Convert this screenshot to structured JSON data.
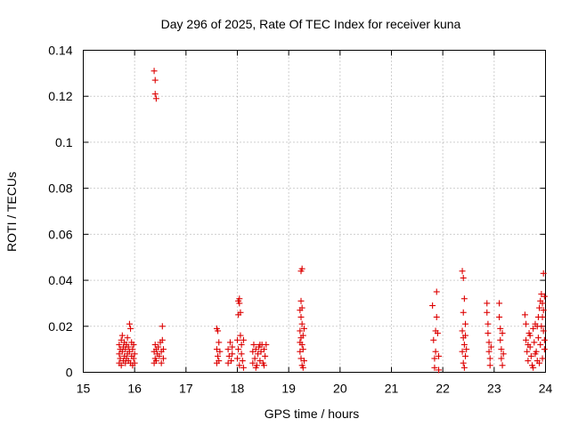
{
  "chart_data": {
    "type": "scatter",
    "title": "Day 296 of 2025, Rate Of TEC Index for receiver kuna",
    "xlabel": "GPS time / hours",
    "ylabel": "ROTI / TECUs",
    "xlim": [
      15,
      24
    ],
    "ylim": [
      0,
      0.14
    ],
    "xticks": [
      "15",
      "16",
      "17",
      "18",
      "19",
      "20",
      "21",
      "22",
      "23",
      "24"
    ],
    "yticks": [
      "0",
      "0.02",
      "0.04",
      "0.06",
      "0.08",
      "0.1",
      "0.12",
      "0.14"
    ],
    "grid": true,
    "marker_color": "#dd0000",
    "marker": "plus",
    "series": [
      {
        "points": [
          [
            15.7,
            0.004
          ],
          [
            15.7,
            0.008
          ],
          [
            15.7,
            0.012
          ],
          [
            15.72,
            0.006
          ],
          [
            15.72,
            0.01
          ],
          [
            15.74,
            0.014
          ],
          [
            15.74,
            0.003
          ],
          [
            15.76,
            0.009
          ],
          [
            15.76,
            0.016
          ],
          [
            15.78,
            0.005
          ],
          [
            15.78,
            0.011
          ],
          [
            15.8,
            0.007
          ],
          [
            15.8,
            0.013
          ],
          [
            15.82,
            0.004
          ],
          [
            15.82,
            0.01
          ],
          [
            15.84,
            0.006
          ],
          [
            15.84,
            0.012
          ],
          [
            15.86,
            0.008
          ],
          [
            15.86,
            0.015
          ],
          [
            15.88,
            0.005
          ],
          [
            15.88,
            0.011
          ],
          [
            15.9,
            0.021
          ],
          [
            15.9,
            0.009
          ],
          [
            15.92,
            0.019
          ],
          [
            15.92,
            0.004
          ],
          [
            15.94,
            0.013
          ],
          [
            15.94,
            0.007
          ],
          [
            15.96,
            0.01
          ],
          [
            15.96,
            0.003
          ],
          [
            15.98,
            0.006
          ],
          [
            15.98,
            0.012
          ],
          [
            16.0,
            0.008
          ],
          [
            16.0,
            0.004
          ],
          [
            16.38,
            0.131
          ],
          [
            16.4,
            0.127
          ],
          [
            16.4,
            0.121
          ],
          [
            16.42,
            0.119
          ],
          [
            16.38,
            0.004
          ],
          [
            16.38,
            0.009
          ],
          [
            16.4,
            0.012
          ],
          [
            16.4,
            0.006
          ],
          [
            16.42,
            0.01
          ],
          [
            16.42,
            0.005
          ],
          [
            16.44,
            0.008
          ],
          [
            16.46,
            0.011
          ],
          [
            16.48,
            0.007
          ],
          [
            16.5,
            0.013
          ],
          [
            16.52,
            0.004
          ],
          [
            16.52,
            0.009
          ],
          [
            16.54,
            0.02
          ],
          [
            16.54,
            0.014
          ],
          [
            16.56,
            0.006
          ],
          [
            16.56,
            0.01
          ],
          [
            17.6,
            0.019
          ],
          [
            17.6,
            0.01
          ],
          [
            17.6,
            0.004
          ],
          [
            17.62,
            0.018
          ],
          [
            17.62,
            0.007
          ],
          [
            17.64,
            0.013
          ],
          [
            17.64,
            0.005
          ],
          [
            17.66,
            0.009
          ],
          [
            17.82,
            0.004
          ],
          [
            17.82,
            0.01
          ],
          [
            17.84,
            0.007
          ],
          [
            17.86,
            0.013
          ],
          [
            17.88,
            0.005
          ],
          [
            17.9,
            0.011
          ],
          [
            17.9,
            0.008
          ],
          [
            18.02,
            0.031
          ],
          [
            18.04,
            0.032
          ],
          [
            18.06,
            0.026
          ],
          [
            18.02,
            0.025
          ],
          [
            18.04,
            0.03
          ],
          [
            18.0,
            0.014
          ],
          [
            18.0,
            0.006
          ],
          [
            18.02,
            0.01
          ],
          [
            18.04,
            0.003
          ],
          [
            18.06,
            0.016
          ],
          [
            18.08,
            0.008
          ],
          [
            18.08,
            0.012
          ],
          [
            18.1,
            0.005
          ],
          [
            18.12,
            0.014
          ],
          [
            18.12,
            0.002
          ],
          [
            18.3,
            0.004
          ],
          [
            18.3,
            0.009
          ],
          [
            18.32,
            0.012
          ],
          [
            18.34,
            0.006
          ],
          [
            18.36,
            0.01
          ],
          [
            18.38,
            0.003
          ],
          [
            18.4,
            0.008
          ],
          [
            18.42,
            0.011
          ],
          [
            18.44,
            0.005
          ],
          [
            18.46,
            0.009
          ],
          [
            18.48,
            0.012
          ],
          [
            18.5,
            0.004
          ],
          [
            18.52,
            0.01
          ],
          [
            18.54,
            0.007
          ],
          [
            18.56,
            0.012
          ],
          [
            18.36,
            0.002
          ],
          [
            18.44,
            0.012
          ],
          [
            18.52,
            0.003
          ],
          [
            19.24,
            0.044
          ],
          [
            19.26,
            0.045
          ],
          [
            19.24,
            0.031
          ],
          [
            19.22,
            0.027
          ],
          [
            19.26,
            0.028
          ],
          [
            19.24,
            0.024
          ],
          [
            19.26,
            0.021
          ],
          [
            19.22,
            0.018
          ],
          [
            19.24,
            0.015
          ],
          [
            19.26,
            0.012
          ],
          [
            19.22,
            0.009
          ],
          [
            19.24,
            0.006
          ],
          [
            19.26,
            0.003
          ],
          [
            19.28,
            0.016
          ],
          [
            19.28,
            0.01
          ],
          [
            19.3,
            0.019
          ],
          [
            19.3,
            0.005
          ],
          [
            19.22,
            0.013
          ],
          [
            19.28,
            0.002
          ],
          [
            21.8,
            0.029
          ],
          [
            21.82,
            0.014
          ],
          [
            21.84,
            0.006
          ],
          [
            21.84,
            0.002
          ],
          [
            21.86,
            0.009
          ],
          [
            21.88,
            0.035
          ],
          [
            21.88,
            0.024
          ],
          [
            21.9,
            0.017
          ],
          [
            21.92,
            0.007
          ],
          [
            21.92,
            0.001
          ],
          [
            21.86,
            0.018
          ],
          [
            22.38,
            0.044
          ],
          [
            22.4,
            0.041
          ],
          [
            22.42,
            0.032
          ],
          [
            22.4,
            0.026
          ],
          [
            22.44,
            0.021
          ],
          [
            22.38,
            0.018
          ],
          [
            22.4,
            0.015
          ],
          [
            22.42,
            0.012
          ],
          [
            22.38,
            0.009
          ],
          [
            22.44,
            0.007
          ],
          [
            22.4,
            0.004
          ],
          [
            22.42,
            0.002
          ],
          [
            22.46,
            0.01
          ],
          [
            22.44,
            0.016
          ],
          [
            22.86,
            0.03
          ],
          [
            22.86,
            0.026
          ],
          [
            22.88,
            0.021
          ],
          [
            22.88,
            0.017
          ],
          [
            22.9,
            0.013
          ],
          [
            22.9,
            0.009
          ],
          [
            22.92,
            0.006
          ],
          [
            22.92,
            0.003
          ],
          [
            22.94,
            0.011
          ],
          [
            23.1,
            0.03
          ],
          [
            23.1,
            0.024
          ],
          [
            23.12,
            0.019
          ],
          [
            23.12,
            0.014
          ],
          [
            23.14,
            0.01
          ],
          [
            23.14,
            0.006
          ],
          [
            23.16,
            0.003
          ],
          [
            23.16,
            0.017
          ],
          [
            23.18,
            0.008
          ],
          [
            23.6,
            0.025
          ],
          [
            23.62,
            0.021
          ],
          [
            23.62,
            0.014
          ],
          [
            23.64,
            0.009
          ],
          [
            23.66,
            0.005
          ],
          [
            23.68,
            0.017
          ],
          [
            23.7,
            0.011
          ],
          [
            23.72,
            0.007
          ],
          [
            23.74,
            0.003
          ],
          [
            23.76,
            0.019
          ],
          [
            23.78,
            0.013
          ],
          [
            23.8,
            0.021
          ],
          [
            23.82,
            0.009
          ],
          [
            23.84,
            0.005
          ],
          [
            23.86,
            0.015
          ],
          [
            23.88,
            0.028
          ],
          [
            23.9,
            0.031
          ],
          [
            23.9,
            0.012
          ],
          [
            23.92,
            0.034
          ],
          [
            23.94,
            0.024
          ],
          [
            23.94,
            0.006
          ],
          [
            23.96,
            0.043
          ],
          [
            23.96,
            0.018
          ],
          [
            23.98,
            0.033
          ],
          [
            23.98,
            0.01
          ],
          [
            23.88,
            0.004
          ],
          [
            23.92,
            0.02
          ],
          [
            23.96,
            0.027
          ],
          [
            23.7,
            0.016
          ],
          [
            23.8,
            0.008
          ],
          [
            23.84,
            0.02
          ],
          [
            23.66,
            0.012
          ],
          [
            23.76,
            0.002
          ],
          [
            23.86,
            0.024
          ],
          [
            23.98,
            0.014
          ],
          [
            23.94,
            0.03
          ]
        ]
      }
    ]
  }
}
